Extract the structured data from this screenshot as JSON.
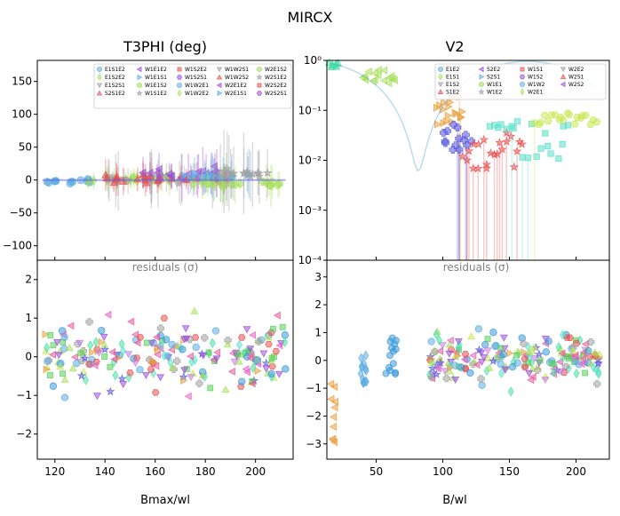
{
  "suptitle": "MIRCX",
  "panels": {
    "t3phi_title": "T3PHI (deg)",
    "v2_title": "V2",
    "left_xlabel": "Bmax/wl",
    "right_xlabel": "B/wl",
    "residuals_label": "residuals (σ)"
  },
  "legends": {
    "t3phi": [
      "E1S1E2",
      "E1S2E2",
      "E1S2S1",
      "S2S1E2",
      "W1E1E2",
      "W1E1S1",
      "W1E1S2",
      "W1S1E2",
      "W1S2E2",
      "W1S2S1",
      "W1W2E1",
      "W1W2E2",
      "W1W2S1",
      "W1W2S2",
      "W2E1E2",
      "W2E1S1",
      "W2E1S2",
      "W2S1E2",
      "W2S2E2",
      "W2S2S1"
    ],
    "v2": [
      "E1E2",
      "E1S1",
      "E1S2",
      "S1E2",
      "S2E2",
      "S2S1",
      "W1E1",
      "W1E2",
      "W1S1",
      "W1S2",
      "W1W2",
      "W2E1",
      "W2E2",
      "W2S1",
      "W2S2"
    ]
  },
  "chart_data": [
    {
      "id": "t3phi",
      "type": "scatter",
      "title": "T3PHI (deg)",
      "ylabel": "",
      "xlim": [
        113,
        215
      ],
      "ylim": [
        -122,
        182
      ],
      "yticks": [
        -100,
        -50,
        0,
        50,
        100,
        150
      ],
      "ytick_labels": [
        "−100",
        "−50",
        "0",
        "50",
        "100",
        "150"
      ],
      "series_clusters": [
        {
          "name": "W2S2S1",
          "x_range": [
            115,
            135
          ],
          "y_center": -2,
          "spread": 6,
          "count": 14,
          "err": 6
        },
        {
          "name": "W1E1E2",
          "x_range": [
            130,
            170
          ],
          "y_center": 2,
          "spread": 8,
          "count": 26,
          "err": 18
        },
        {
          "name": "W1W2S1",
          "x_range": [
            140,
            185
          ],
          "y_center": 0,
          "spread": 10,
          "count": 26,
          "err": 35
        },
        {
          "name": "W1S2E2",
          "x_range": [
            140,
            190
          ],
          "y_center": 2,
          "spread": 10,
          "count": 28,
          "err": 20
        },
        {
          "name": "W1S1E2",
          "x_range": [
            155,
            185
          ],
          "y_center": 10,
          "spread": 15,
          "count": 18,
          "err": 30
        },
        {
          "name": "W1E1S2",
          "x_range": [
            170,
            200
          ],
          "y_center": 5,
          "spread": 12,
          "count": 20,
          "err": 30
        },
        {
          "name": "E1S1E2",
          "x_range": [
            175,
            210
          ],
          "y_center": -5,
          "spread": 10,
          "count": 18,
          "err": 25
        },
        {
          "name": "W1E1S1",
          "x_range": [
            185,
            212
          ],
          "y_center": 10,
          "spread": 12,
          "count": 16,
          "err": 60
        }
      ]
    },
    {
      "id": "t3phi_residuals",
      "type": "scatter",
      "xlim": [
        113,
        215
      ],
      "ylim": [
        -2.65,
        2.5
      ],
      "xticks": [
        120,
        140,
        160,
        180,
        200
      ],
      "xtick_labels": [
        "120",
        "140",
        "160",
        "180",
        "200"
      ],
      "yticks": [
        -2,
        -1,
        0,
        1,
        2
      ],
      "ytick_labels": [
        "−2",
        "−1",
        "0",
        "1",
        "2"
      ],
      "xlabel": "Bmax/wl"
    },
    {
      "id": "v2",
      "type": "scatter",
      "title": "V2",
      "yscale": "log",
      "xlim": [
        13,
        225
      ],
      "ylim": [
        0.0001,
        1.0
      ],
      "yticks": [
        0.0001,
        0.001,
        0.01,
        0.1,
        1.0
      ],
      "ytick_labels": [
        "10⁻⁴",
        "10⁻³",
        "10⁻²",
        "10⁻¹",
        "10⁰"
      ],
      "series_clusters": [
        {
          "name": "S2S1",
          "x_range": [
            15,
            22
          ],
          "y_range": [
            0.7,
            0.95
          ],
          "count": 8
        },
        {
          "name": "W1W2",
          "x_range": [
            40,
            65
          ],
          "y_range": [
            0.33,
            0.65
          ],
          "count": 16
        },
        {
          "name": "W2S2",
          "x_range": [
            95,
            115
          ],
          "y_range": [
            0.04,
            0.2
          ],
          "count": 18
        },
        {
          "name": "W2S1",
          "x_range": [
            100,
            120
          ],
          "y_range": [
            0.015,
            0.06
          ],
          "count": 14
        },
        {
          "name": "S1E2",
          "x_range": [
            115,
            160
          ],
          "y_range": [
            0.006,
            0.04
          ],
          "count": 22
        },
        {
          "name": "W1E1",
          "x_range": [
            135,
            195
          ],
          "y_range": [
            0.01,
            0.06
          ],
          "count": 20
        },
        {
          "name": "E1S1",
          "x_range": [
            170,
            215
          ],
          "y_range": [
            0.05,
            0.09
          ],
          "count": 20
        }
      ]
    },
    {
      "id": "v2_residuals",
      "type": "scatter",
      "xlim": [
        13,
        225
      ],
      "ylim": [
        -3.55,
        3.6
      ],
      "xticks": [
        50,
        100,
        150,
        200
      ],
      "xtick_labels": [
        "50",
        "100",
        "150",
        "200"
      ],
      "yticks": [
        -3,
        -2,
        -1,
        0,
        1,
        2,
        3
      ],
      "ytick_labels": [
        "−3",
        "−2",
        "−1",
        "0",
        "1",
        "2",
        "3"
      ],
      "xlabel": "B/wl"
    }
  ],
  "colors": {
    "E1E2": "#5dade2",
    "E1S1": "#48e0a4",
    "E1S2": "#c87ee8",
    "S1E2": "#a8e05d",
    "S2E2": "#e8589c",
    "S2S1": "#e8a040",
    "W1E1": "#a0a0a0",
    "W1E2": "#5a5ae0",
    "W1S1": "#58d058",
    "W1S2": "#e85050",
    "W1W2": "#3a9ad8",
    "W2E1": "#5ae0c8",
    "W2E2": "#9a50d8",
    "W2S1": "#c8e858",
    "W2S2": "#e860c0"
  }
}
